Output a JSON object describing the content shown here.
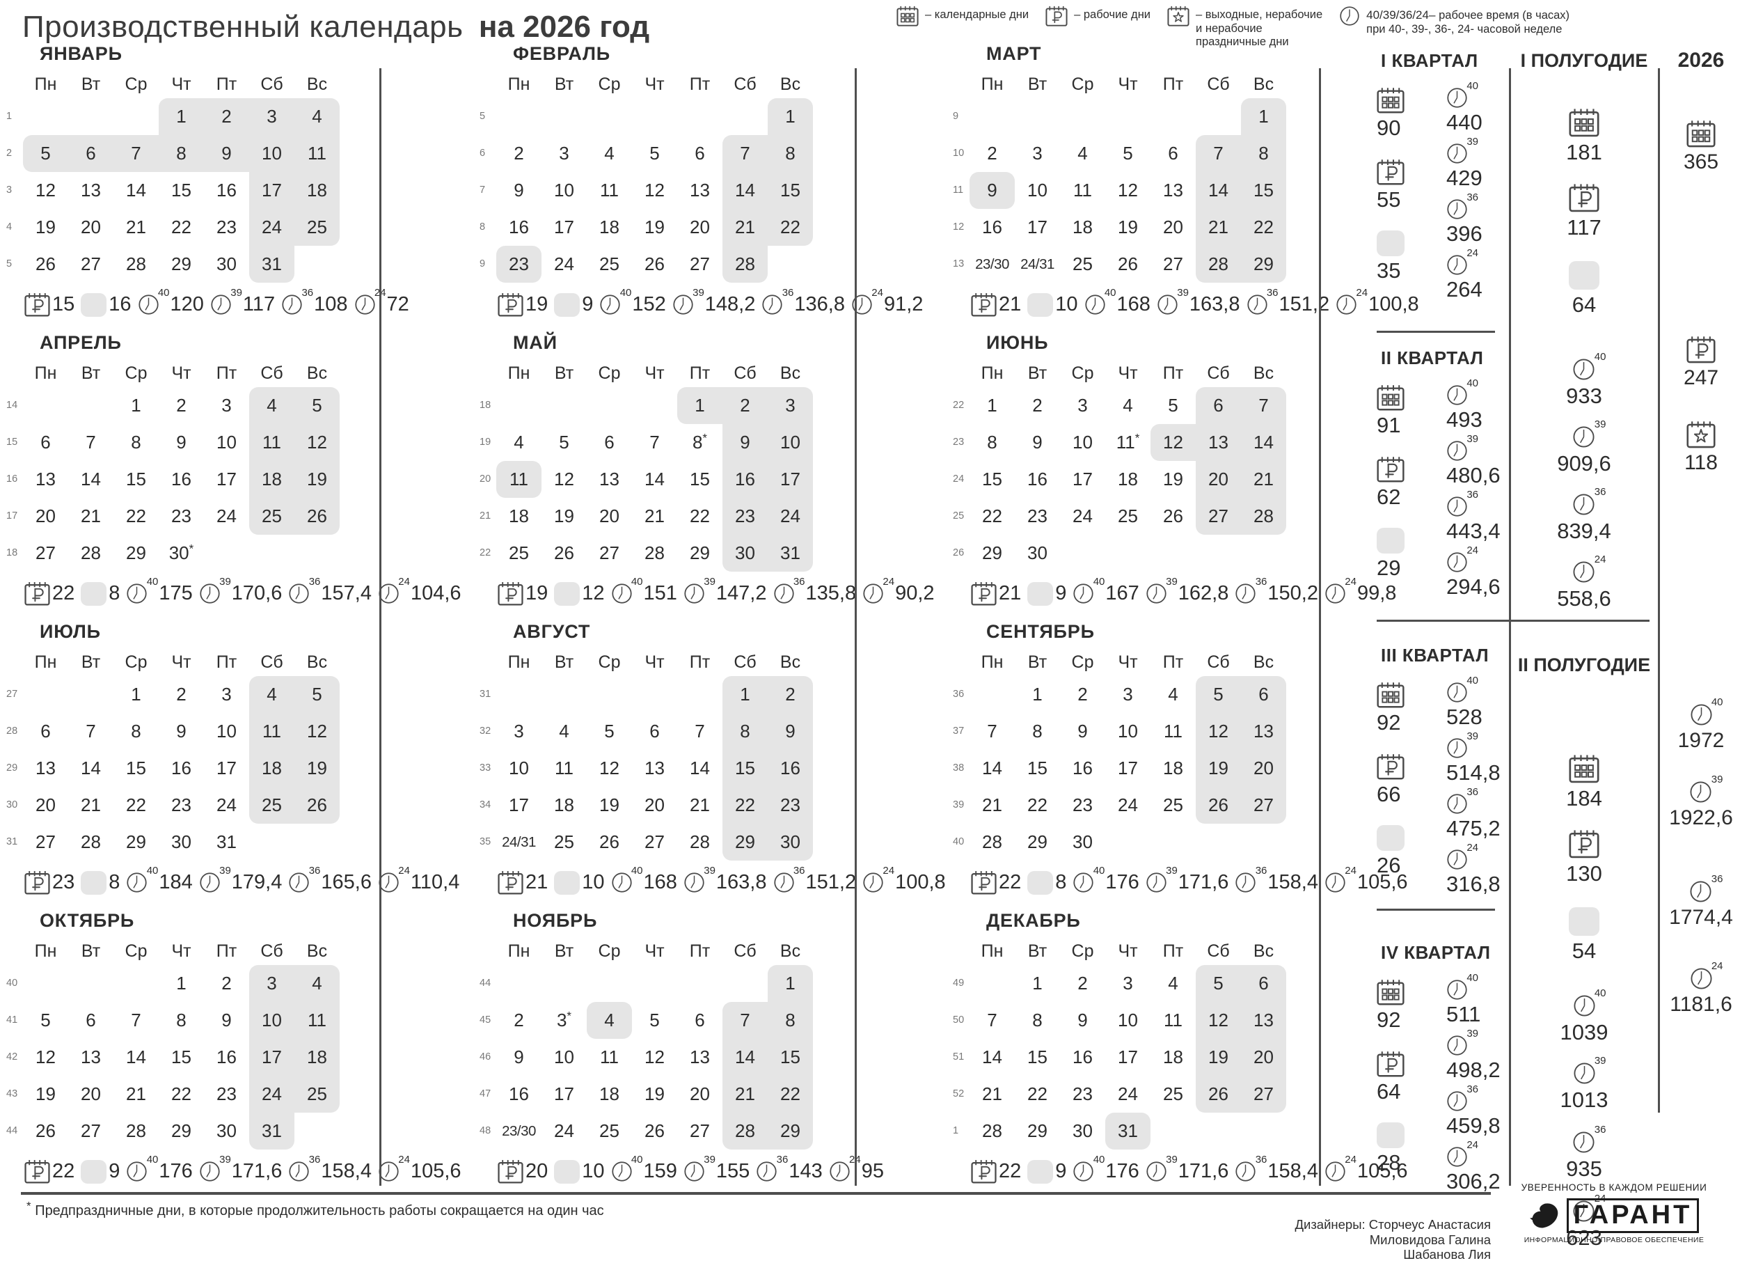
{
  "header": {
    "title_regular": "Производственный календарь",
    "title_bold": "на 2026 год",
    "legend": [
      {
        "icon": "calendar",
        "lines": [
          "– календарные дни"
        ]
      },
      {
        "icon": "workday",
        "lines": [
          "– рабочие дни"
        ]
      },
      {
        "icon": "holiday",
        "lines": [
          "– выходные, нерабочие",
          "и нерабочие",
          "праздничные дни"
        ]
      },
      {
        "icon": "clock",
        "prefix": "40/39/36/24–",
        "lines": [
          "рабочее время (в часах)",
          "при 40-, 39-, 36-, 24- часовой неделе"
        ]
      }
    ]
  },
  "day_headers": [
    "Пн",
    "Вт",
    "Ср",
    "Чт",
    "Пт",
    "Сб",
    "Вс"
  ],
  "months": [
    {
      "name": "ЯНВАРЬ",
      "weeks": [
        {
          "n": "1",
          "days": [
            "",
            "",
            "",
            "1h",
            "2h",
            "3h",
            "4h"
          ]
        },
        {
          "n": "2",
          "days": [
            "5h",
            "6h",
            "7h",
            "8h",
            "9h",
            "10h",
            "11h"
          ]
        },
        {
          "n": "3",
          "days": [
            "12",
            "13",
            "14",
            "15",
            "16",
            "17h",
            "18h"
          ]
        },
        {
          "n": "4",
          "days": [
            "19",
            "20",
            "21",
            "22",
            "23",
            "24h",
            "25h"
          ]
        },
        {
          "n": "5",
          "days": [
            "26",
            "27",
            "28",
            "29",
            "30",
            "31h",
            ""
          ]
        }
      ],
      "summary": {
        "work": "15",
        "off": "16",
        "h40": "120",
        "h39": "117",
        "h36": "108",
        "h24": "72"
      }
    },
    {
      "name": "ФЕВРАЛЬ",
      "weeks": [
        {
          "n": "5",
          "days": [
            "",
            "",
            "",
            "",
            "",
            "",
            "1h"
          ]
        },
        {
          "n": "6",
          "days": [
            "2",
            "3",
            "4",
            "5",
            "6",
            "7h",
            "8h"
          ]
        },
        {
          "n": "7",
          "days": [
            "9",
            "10",
            "11",
            "12",
            "13",
            "14h",
            "15h"
          ]
        },
        {
          "n": "8",
          "days": [
            "16",
            "17",
            "18",
            "19",
            "20",
            "21h",
            "22h"
          ]
        },
        {
          "n": "9",
          "days": [
            "23h",
            "24",
            "25",
            "26",
            "27",
            "28h",
            ""
          ]
        }
      ],
      "summary": {
        "work": "19",
        "off": "9",
        "h40": "152",
        "h39": "148,2",
        "h36": "136,8",
        "h24": "91,2"
      }
    },
    {
      "name": "МАРТ",
      "weeks": [
        {
          "n": "9",
          "days": [
            "",
            "",
            "",
            "",
            "",
            "",
            "1h"
          ]
        },
        {
          "n": "10",
          "days": [
            "2",
            "3",
            "4",
            "5",
            "6",
            "7h",
            "8h"
          ]
        },
        {
          "n": "11",
          "days": [
            "9h",
            "10",
            "11",
            "12",
            "13",
            "14h",
            "15h"
          ]
        },
        {
          "n": "12",
          "days": [
            "16",
            "17",
            "18",
            "19",
            "20",
            "21h",
            "22h"
          ]
        },
        {
          "n": "13",
          "days": [
            "23/30",
            "24/31",
            "25",
            "26",
            "27",
            "28h",
            "29h"
          ]
        }
      ],
      "summary": {
        "work": "21",
        "off": "10",
        "h40": "168",
        "h39": "163,8",
        "h36": "151,2",
        "h24": "100,8"
      }
    },
    {
      "name": "АПРЕЛЬ",
      "weeks": [
        {
          "n": "14",
          "days": [
            "",
            "",
            "1",
            "2",
            "3",
            "4h",
            "5h"
          ]
        },
        {
          "n": "15",
          "days": [
            "6",
            "7",
            "8",
            "9",
            "10",
            "11h",
            "12h"
          ]
        },
        {
          "n": "16",
          "days": [
            "13",
            "14",
            "15",
            "16",
            "17",
            "18h",
            "19h"
          ]
        },
        {
          "n": "17",
          "days": [
            "20",
            "21",
            "22",
            "23",
            "24",
            "25h",
            "26h"
          ]
        },
        {
          "n": "18",
          "days": [
            "27",
            "28",
            "29",
            "30*",
            "",
            "",
            ""
          ]
        }
      ],
      "summary": {
        "work": "22",
        "off": "8",
        "h40": "175",
        "h39": "170,6",
        "h36": "157,4",
        "h24": "104,6"
      }
    },
    {
      "name": "МАЙ",
      "weeks": [
        {
          "n": "18",
          "days": [
            "",
            "",
            "",
            "",
            "1h",
            "2h",
            "3h"
          ]
        },
        {
          "n": "19",
          "days": [
            "4",
            "5",
            "6",
            "7",
            "8*",
            "9h",
            "10h"
          ]
        },
        {
          "n": "20",
          "days": [
            "11h",
            "12",
            "13",
            "14",
            "15",
            "16h",
            "17h"
          ]
        },
        {
          "n": "21",
          "days": [
            "18",
            "19",
            "20",
            "21",
            "22",
            "23h",
            "24h"
          ]
        },
        {
          "n": "22",
          "days": [
            "25",
            "26",
            "27",
            "28",
            "29",
            "30h",
            "31h"
          ]
        }
      ],
      "summary": {
        "work": "19",
        "off": "12",
        "h40": "151",
        "h39": "147,2",
        "h36": "135,8",
        "h24": "90,2"
      }
    },
    {
      "name": "ИЮНЬ",
      "weeks": [
        {
          "n": "22",
          "days": [
            "1",
            "2",
            "3",
            "4",
            "5",
            "6h",
            "7h"
          ]
        },
        {
          "n": "23",
          "days": [
            "8",
            "9",
            "10",
            "11*",
            "12h",
            "13h",
            "14h"
          ]
        },
        {
          "n": "24",
          "days": [
            "15",
            "16",
            "17",
            "18",
            "19",
            "20h",
            "21h"
          ]
        },
        {
          "n": "25",
          "days": [
            "22",
            "23",
            "24",
            "25",
            "26",
            "27h",
            "28h"
          ]
        },
        {
          "n": "26",
          "days": [
            "29",
            "30",
            "",
            "",
            "",
            "",
            ""
          ]
        }
      ],
      "summary": {
        "work": "21",
        "off": "9",
        "h40": "167",
        "h39": "162,8",
        "h36": "150,2",
        "h24": "99,8"
      }
    },
    {
      "name": "ИЮЛЬ",
      "weeks": [
        {
          "n": "27",
          "days": [
            "",
            "",
            "1",
            "2",
            "3",
            "4h",
            "5h"
          ]
        },
        {
          "n": "28",
          "days": [
            "6",
            "7",
            "8",
            "9",
            "10",
            "11h",
            "12h"
          ]
        },
        {
          "n": "29",
          "days": [
            "13",
            "14",
            "15",
            "16",
            "17",
            "18h",
            "19h"
          ]
        },
        {
          "n": "30",
          "days": [
            "20",
            "21",
            "22",
            "23",
            "24",
            "25h",
            "26h"
          ]
        },
        {
          "n": "31",
          "days": [
            "27",
            "28",
            "29",
            "30",
            "31",
            "",
            ""
          ]
        }
      ],
      "summary": {
        "work": "23",
        "off": "8",
        "h40": "184",
        "h39": "179,4",
        "h36": "165,6",
        "h24": "110,4"
      }
    },
    {
      "name": "АВГУСТ",
      "weeks": [
        {
          "n": "31",
          "days": [
            "",
            "",
            "",
            "",
            "",
            "1h",
            "2h"
          ]
        },
        {
          "n": "32",
          "days": [
            "3",
            "4",
            "5",
            "6",
            "7",
            "8h",
            "9h"
          ]
        },
        {
          "n": "33",
          "days": [
            "10",
            "11",
            "12",
            "13",
            "14",
            "15h",
            "16h"
          ]
        },
        {
          "n": "34",
          "days": [
            "17",
            "18",
            "19",
            "20",
            "21",
            "22h",
            "23h"
          ]
        },
        {
          "n": "35",
          "days": [
            "24/31",
            "25",
            "26",
            "27",
            "28",
            "29h",
            "30h"
          ]
        }
      ],
      "summary": {
        "work": "21",
        "off": "10",
        "h40": "168",
        "h39": "163,8",
        "h36": "151,2",
        "h24": "100,8"
      }
    },
    {
      "name": "СЕНТЯБРЬ",
      "weeks": [
        {
          "n": "36",
          "days": [
            "",
            "1",
            "2",
            "3",
            "4",
            "5h",
            "6h"
          ]
        },
        {
          "n": "37",
          "days": [
            "7",
            "8",
            "9",
            "10",
            "11",
            "12h",
            "13h"
          ]
        },
        {
          "n": "38",
          "days": [
            "14",
            "15",
            "16",
            "17",
            "18",
            "19h",
            "20h"
          ]
        },
        {
          "n": "39",
          "days": [
            "21",
            "22",
            "23",
            "24",
            "25",
            "26h",
            "27h"
          ]
        },
        {
          "n": "40",
          "days": [
            "28",
            "29",
            "30",
            "",
            "",
            "",
            ""
          ]
        }
      ],
      "summary": {
        "work": "22",
        "off": "8",
        "h40": "176",
        "h39": "171,6",
        "h36": "158,4",
        "h24": "105,6"
      }
    },
    {
      "name": "ОКТЯБРЬ",
      "weeks": [
        {
          "n": "40",
          "days": [
            "",
            "",
            "",
            "1",
            "2",
            "3h",
            "4h"
          ]
        },
        {
          "n": "41",
          "days": [
            "5",
            "6",
            "7",
            "8",
            "9",
            "10h",
            "11h"
          ]
        },
        {
          "n": "42",
          "days": [
            "12",
            "13",
            "14",
            "15",
            "16",
            "17h",
            "18h"
          ]
        },
        {
          "n": "43",
          "days": [
            "19",
            "20",
            "21",
            "22",
            "23",
            "24h",
            "25h"
          ]
        },
        {
          "n": "44",
          "days": [
            "26",
            "27",
            "28",
            "29",
            "30",
            "31h",
            ""
          ]
        }
      ],
      "summary": {
        "work": "22",
        "off": "9",
        "h40": "176",
        "h39": "171,6",
        "h36": "158,4",
        "h24": "105,6"
      }
    },
    {
      "name": "НОЯБРЬ",
      "weeks": [
        {
          "n": "44",
          "days": [
            "",
            "",
            "",
            "",
            "",
            "",
            "1h"
          ]
        },
        {
          "n": "45",
          "days": [
            "2",
            "3*",
            "4h",
            "5",
            "6",
            "7h",
            "8h"
          ]
        },
        {
          "n": "46",
          "days": [
            "9",
            "10",
            "11",
            "12",
            "13",
            "14h",
            "15h"
          ]
        },
        {
          "n": "47",
          "days": [
            "16",
            "17",
            "18",
            "19",
            "20",
            "21h",
            "22h"
          ]
        },
        {
          "n": "48",
          "days": [
            "23/30",
            "24",
            "25",
            "26",
            "27",
            "28h",
            "29h"
          ]
        }
      ],
      "summary": {
        "work": "20",
        "off": "10",
        "h40": "159",
        "h39": "155",
        "h36": "143",
        "h24": "95"
      }
    },
    {
      "name": "ДЕКАБРЬ",
      "weeks": [
        {
          "n": "49",
          "days": [
            "",
            "1",
            "2",
            "3",
            "4",
            "5h",
            "6h"
          ]
        },
        {
          "n": "50",
          "days": [
            "7",
            "8",
            "9",
            "10",
            "11",
            "12h",
            "13h"
          ]
        },
        {
          "n": "51",
          "days": [
            "14",
            "15",
            "16",
            "17",
            "18",
            "19h",
            "20h"
          ]
        },
        {
          "n": "52",
          "days": [
            "21",
            "22",
            "23",
            "24",
            "25",
            "26h",
            "27h"
          ]
        },
        {
          "n": "1",
          "days": [
            "28",
            "29",
            "30",
            "31h",
            "",
            "",
            ""
          ]
        }
      ],
      "summary": {
        "work": "22",
        "off": "9",
        "h40": "176",
        "h39": "171,6",
        "h36": "158,4",
        "h24": "105,6"
      }
    }
  ],
  "quarters": [
    {
      "title": "I КВАРТАЛ",
      "cal": "90",
      "work": "55",
      "off": "35",
      "h40": "440",
      "h39": "429",
      "h36": "396",
      "h24": "264"
    },
    {
      "title": "II КВАРТАЛ",
      "cal": "91",
      "work": "62",
      "off": "29",
      "h40": "493",
      "h39": "480,6",
      "h36": "443,4",
      "h24": "294,6"
    },
    {
      "title": "III КВАРТАЛ",
      "cal": "92",
      "work": "66",
      "off": "26",
      "h40": "528",
      "h39": "514,8",
      "h36": "475,2",
      "h24": "316,8"
    },
    {
      "title": "IV КВАРТАЛ",
      "cal": "92",
      "work": "64",
      "off": "28",
      "h40": "511",
      "h39": "498,2",
      "h36": "459,8",
      "h24": "306,2"
    }
  ],
  "halves": [
    {
      "title": "I ПОЛУГОДИЕ",
      "cal": "181",
      "work": "117",
      "off": "64",
      "h40": "933",
      "h39": "909,6",
      "h36": "839,4",
      "h24": "558,6"
    },
    {
      "title": "II ПОЛУГОДИЕ",
      "cal": "184",
      "work": "130",
      "off": "54",
      "h40": "1039",
      "h39": "1013",
      "h36": "935",
      "h24": "623"
    }
  ],
  "year": {
    "title": "2026",
    "cal": "365",
    "work": "247",
    "holidays": "118",
    "h40": "1972",
    "h39": "1922,6",
    "h36": "1774,4",
    "h24": "1181,6"
  },
  "footer": {
    "footnote_mark": "*",
    "footnote": "Предпраздничные дни, в которые продолжительность работы сокращается на один час",
    "designers": [
      "Дизайнеры: Сторчеус Анастасия",
      "Миловидова Галина",
      "Шабанова Лия"
    ],
    "tagline": "УВЕРЕННОСТЬ В КАЖДОМ РЕШЕНИИ",
    "brand": "ГАРАНТ",
    "brand_sub": "ИНФОРМАЦИОННО-ПРАВОВОЕ ОБЕСПЕЧЕНИЕ"
  }
}
